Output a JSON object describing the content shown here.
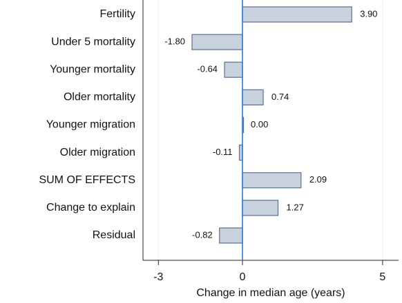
{
  "chart_data": {
    "type": "barh",
    "categories": [
      "Fertility",
      "Under 5 mortality",
      "Younger mortality",
      "Older mortality",
      "Younger migration",
      "Older migration",
      "SUM OF EFFECTS",
      "Change to explain",
      "Residual"
    ],
    "values": [
      3.9,
      -1.8,
      -0.64,
      0.74,
      0.0,
      -0.11,
      2.09,
      1.27,
      -0.82
    ],
    "value_labels": [
      "3.90",
      "-1.80",
      "-0.64",
      "0.74",
      "0.00",
      "-0.11",
      "2.09",
      "1.27",
      "-0.82"
    ],
    "color": "#c8d2de",
    "edgecolor": "#5b6f8a",
    "zeroline_color": "#1e7be6",
    "xlabel": "Change in median age (years)",
    "xlim": [
      -3.55,
      5.57
    ],
    "xticks": [
      -3,
      0,
      5
    ],
    "grid": true
  }
}
